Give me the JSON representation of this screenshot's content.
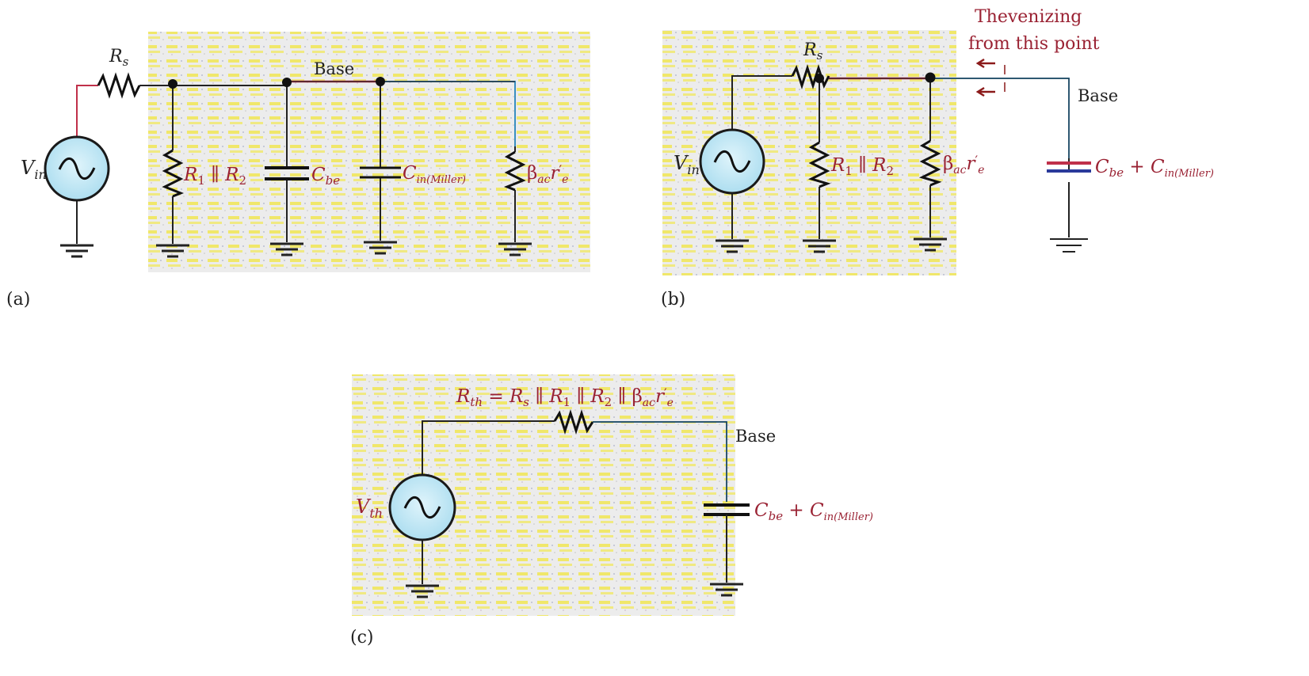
{
  "colors": {
    "background": "#ffffff",
    "panel_fill": "#eeeeee",
    "panel_speckle": "#f2e300",
    "wire": "#222222",
    "wire_red": "#c0304a",
    "wire_blue": "#3a8fc0",
    "label_red": "#9a2233",
    "label_dark": "#222222",
    "source_fill": "#bfe6f5",
    "arrow": "#8b1a1a"
  },
  "panel_a": {
    "caption": "(a)",
    "rs": {
      "main": "R",
      "sub": "s"
    },
    "base_label": "Base",
    "vin": {
      "main": "V",
      "sub": "in"
    },
    "r12": {
      "r1": "R",
      "r1_sub": "1",
      "parallel": " ∥ ",
      "r2": "R",
      "r2_sub": "2"
    },
    "cbe": {
      "main": "C",
      "sub": "be"
    },
    "cmiller": {
      "main": "C",
      "sub": "in(Miller)"
    },
    "beta": {
      "main": "β",
      "sub": "ac",
      "r": "r",
      "prime": "′",
      "e": "e"
    }
  },
  "panel_b": {
    "caption": "(b)",
    "rs": {
      "main": "R",
      "sub": "s"
    },
    "thevenizing": [
      "Thevenizing",
      "from this point"
    ],
    "base_label": "Base",
    "vin": {
      "main": "V",
      "sub": "in"
    },
    "r12": {
      "r1": "R",
      "r1_sub": "1",
      "parallel": " ∥ ",
      "r2": "R",
      "r2_sub": "2"
    },
    "beta": {
      "main": "β",
      "sub": "ac",
      "r": "r",
      "prime": "′",
      "e": "e"
    },
    "cap": {
      "c1": "C",
      "c1_sub": "be",
      "plus": " + ",
      "c2": "C",
      "c2_sub": "in(Miller)"
    }
  },
  "panel_c": {
    "caption": "(c)",
    "rth": {
      "lhs": "R",
      "lhs_sub": "th",
      "eq": " = ",
      "rs": "R",
      "rs_sub": "s",
      "p1": " ∥ ",
      "r1": "R",
      "r1_sub": "1",
      "p2": " ∥ ",
      "r2": "R",
      "r2_sub": "2",
      "p3": " ∥ ",
      "beta": "β",
      "beta_sub": "ac",
      "r": "r",
      "prime": "′",
      "e": "e"
    },
    "base_label": "Base",
    "vth": {
      "main": "V",
      "sub": "th"
    },
    "cap": {
      "c1": "C",
      "c1_sub": "be",
      "plus": " + ",
      "c2": "C",
      "c2_sub": "in(Miller)"
    }
  }
}
